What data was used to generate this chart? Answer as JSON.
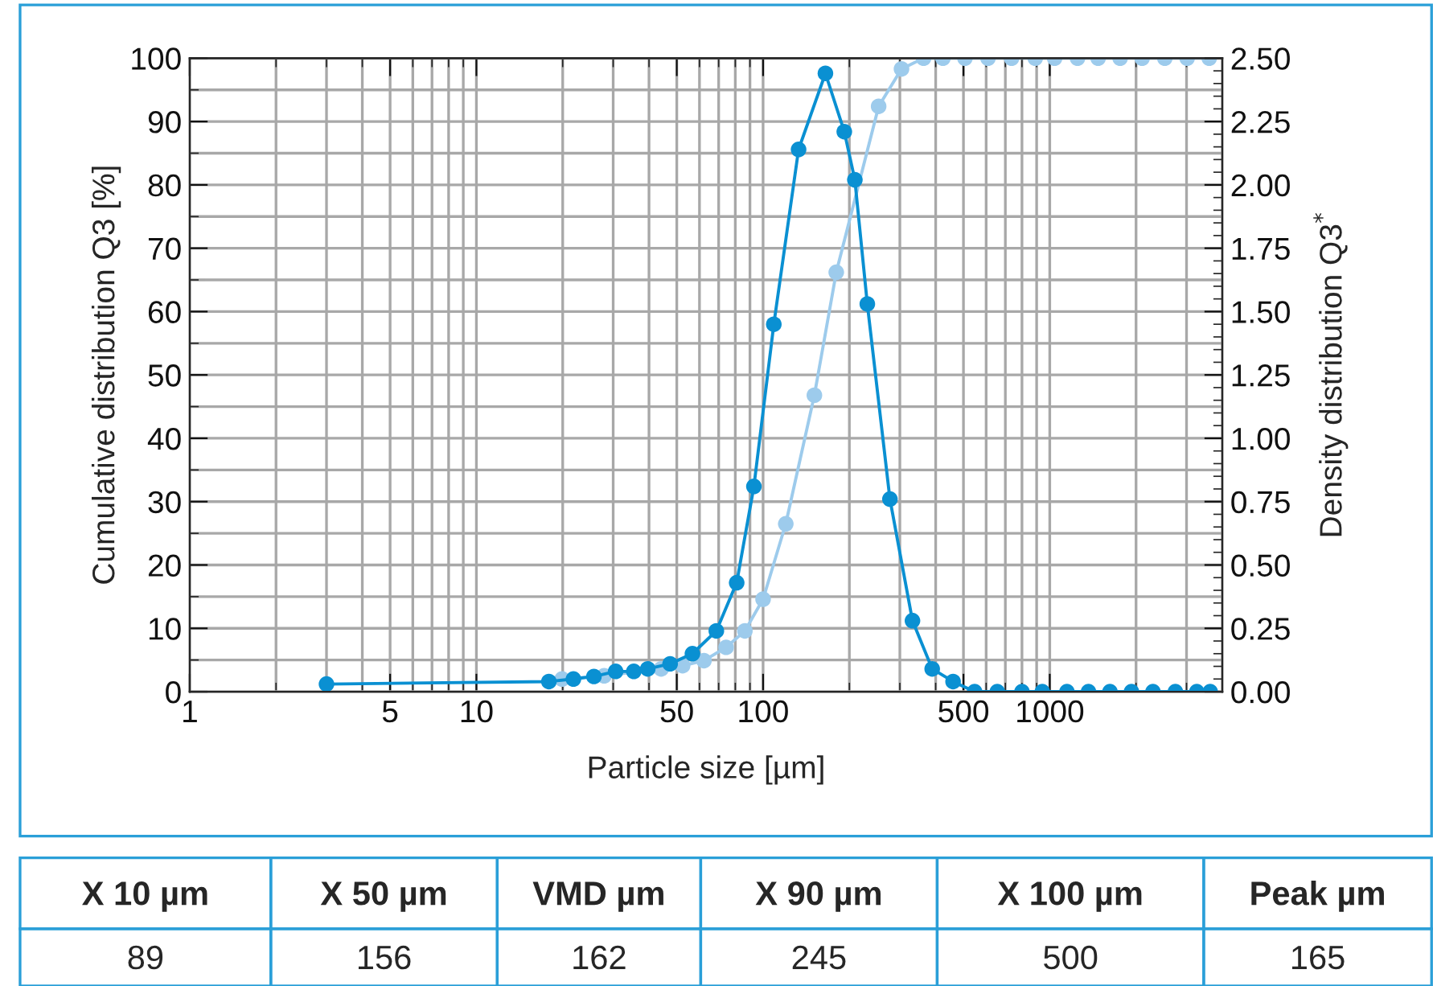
{
  "chart_data": {
    "type": "line",
    "xlabel": "Particle size [µm]",
    "ylabel": "Cumulative distribution Q3 [%]",
    "y2label": "Density distribution Q3$^{*}$",
    "log": "x",
    "xlim": [
      1,
      4000
    ],
    "xticks": [
      1,
      5,
      10,
      50,
      100,
      500,
      1000
    ],
    "ylim": [
      0,
      100
    ],
    "yticks": [
      0,
      10,
      20,
      30,
      40,
      50,
      60,
      70,
      80,
      90,
      100
    ],
    "y2lim": [
      0,
      2.5
    ],
    "y2ticks": [
      {
        "value": 0,
        "label": "0.00"
      },
      {
        "value": 0.25,
        "label": "0.25"
      },
      {
        "value": 0.5,
        "label": "0.50"
      },
      {
        "value": 0.75,
        "label": "0.75"
      },
      {
        "value": 1,
        "label": "1.00"
      },
      {
        "value": 1.25,
        "label": "1.25"
      },
      {
        "value": 1.5,
        "label": "1.50"
      },
      {
        "value": 1.75,
        "label": "1.75"
      },
      {
        "value": 2,
        "label": "2.00"
      },
      {
        "value": 2.25,
        "label": "2.25"
      },
      {
        "value": 2.5,
        "label": "2.50"
      }
    ],
    "grid": true,
    "marker": "circle",
    "line_style": "solid",
    "series": [
      {
        "color": "#9dcbec",
        "x": [
          19.9,
          23.9,
          27.9,
          33.2,
          44.1,
          52.4,
          62.2,
          74.3,
          86.4,
          100,
          120,
          151,
          180,
          253,
          304,
          363,
          424,
          506,
          609,
          736,
          890,
          1040,
          1250,
          1475,
          1760,
          2100,
          2520,
          3015,
          3600
        ],
        "values": [
          2.0,
          null,
          2.5,
          null,
          3.6,
          4.1,
          4.9,
          7.0,
          9.6,
          14.6,
          26.5,
          46.8,
          66.2,
          92.4,
          98.3,
          100,
          100,
          100,
          100,
          100,
          100,
          100,
          100,
          100,
          100,
          100,
          100,
          100,
          100
        ]
      },
      {
        "color": "#0a90d2",
        "axis": "y2",
        "x": [
          3,
          17.9,
          21.8,
          25.7,
          30.6,
          35.4,
          39.6,
          47.4,
          56.7,
          68.7,
          80.9,
          92.9,
          109,
          133,
          165,
          192,
          209,
          231,
          277,
          332,
          389,
          460,
          547,
          656,
          800,
          942,
          1148,
          1365,
          1622,
          1928,
          2291,
          2743,
          3258,
          3628
        ],
        "values": [
          0.03,
          0.04,
          0.05,
          0.06,
          0.08,
          0.08,
          0.09,
          0.11,
          0.15,
          0.24,
          0.43,
          0.81,
          1.45,
          2.14,
          2.44,
          2.21,
          2.02,
          1.53,
          0.76,
          0.28,
          0.09,
          0.04,
          0,
          0,
          0,
          0,
          0,
          0,
          0,
          0,
          0,
          0,
          0,
          0
        ]
      }
    ],
    "annotations": [
      "X 10 µm",
      "X 50 µm",
      "VMD µm",
      "X 90 µm",
      "X 100 µm",
      "Peak µm",
      "89",
      "156",
      "162",
      "245",
      "500",
      "165"
    ]
  }
}
